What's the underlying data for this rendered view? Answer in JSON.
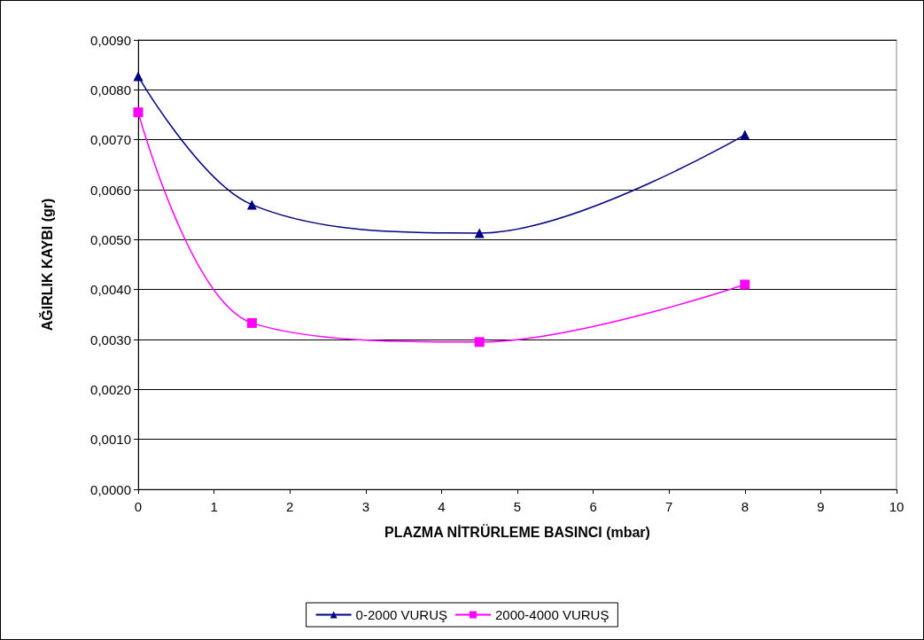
{
  "chart_data": {
    "type": "line",
    "xlabel": "PLAZMA NİTRÜRLEME BASINCI (mbar)",
    "ylabel": "AĞIRLIK KAYBI (gr)",
    "xlim": [
      0,
      10
    ],
    "xticks": [
      0,
      1,
      2,
      3,
      4,
      5,
      6,
      7,
      8,
      9,
      10
    ],
    "ylim": [
      0,
      0.009
    ],
    "yticks": [
      {
        "value": 0,
        "label": "0,0000"
      },
      {
        "value": 0.001,
        "label": "0,0010"
      },
      {
        "value": 0.002,
        "label": "0,0020"
      },
      {
        "value": 0.003,
        "label": "0,0030"
      },
      {
        "value": 0.004,
        "label": "0,0040"
      },
      {
        "value": 0.005,
        "label": "0,0050"
      },
      {
        "value": 0.006,
        "label": "0,0060"
      },
      {
        "value": 0.007,
        "label": "0,0070"
      },
      {
        "value": 0.008,
        "label": "0,0080"
      },
      {
        "value": 0.009,
        "label": "0,0090"
      }
    ],
    "grid": "y",
    "legend": "bottom",
    "line_style": "solid",
    "x": [
      0,
      1.5,
      4.5,
      8
    ],
    "series": [
      {
        "name": "0-2000 VURUŞ",
        "color": "#000080",
        "marker": "triangle",
        "values": [
          0.00827,
          0.0057,
          0.00513,
          0.0071
        ]
      },
      {
        "name": "2000-4000 VURUŞ",
        "color": "#ff00ff",
        "marker": "square",
        "values": [
          0.00755,
          0.00333,
          0.00295,
          0.0041
        ]
      }
    ]
  }
}
